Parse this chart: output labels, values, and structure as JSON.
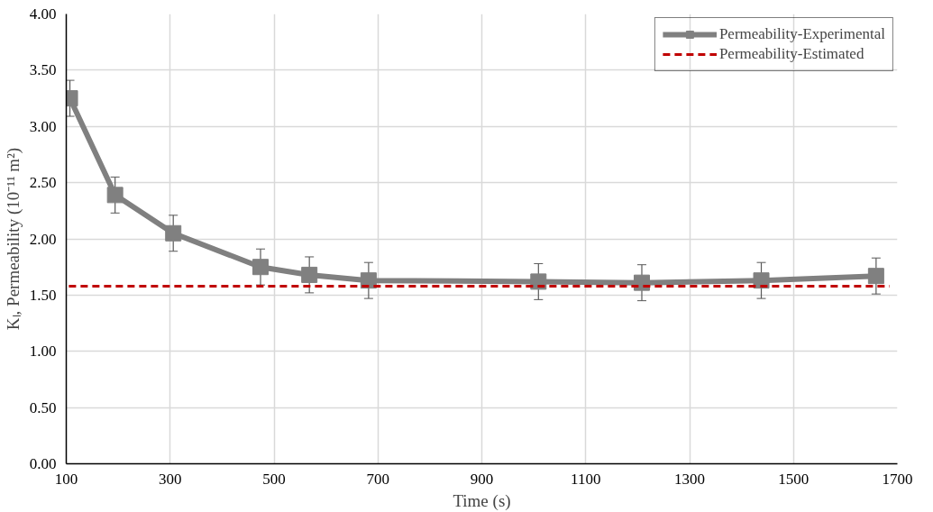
{
  "chart_data": {
    "type": "line",
    "xlabel": "Time (s)",
    "ylabel": "Kₗ, Permeability (10⁻¹¹ m²)",
    "xlim": [
      100,
      1700
    ],
    "xticks": [
      100,
      300,
      500,
      700,
      900,
      1100,
      1300,
      1500,
      1700
    ],
    "ylim": [
      0,
      4
    ],
    "yticks": [
      {
        "value": 0,
        "label": "0.00"
      },
      {
        "value": 0.5,
        "label": "0.50"
      },
      {
        "value": 1,
        "label": "1.00"
      },
      {
        "value": 1.5,
        "label": "1.50"
      },
      {
        "value": 2,
        "label": "2.00"
      },
      {
        "value": 2.5,
        "label": "2.50"
      },
      {
        "value": 3,
        "label": "3.00"
      },
      {
        "value": 3.5,
        "label": "3.50"
      },
      {
        "value": 4,
        "label": "4.00"
      }
    ],
    "grid": true,
    "legend": "top right",
    "series": [
      {
        "name": "Permeability-Experimental",
        "color": "#808080",
        "marker": "square",
        "line_style": "solid",
        "x": [
          107,
          194,
          306,
          474,
          568,
          682,
          1009,
          1208,
          1438,
          1659
        ],
        "values": [
          3.25,
          2.39,
          2.05,
          1.75,
          1.68,
          1.63,
          1.62,
          1.61,
          1.63,
          1.67
        ],
        "errors": [
          0.16,
          0.16,
          0.16,
          0.16,
          0.16,
          0.16,
          0.16,
          0.16,
          0.16,
          0.16
        ]
      },
      {
        "name": "Permeability-Estimated",
        "color": "#c00000",
        "marker": "none",
        "line_style": "dashed",
        "x": [
          105,
          1685
        ],
        "values": [
          1.58,
          1.58
        ]
      }
    ]
  }
}
